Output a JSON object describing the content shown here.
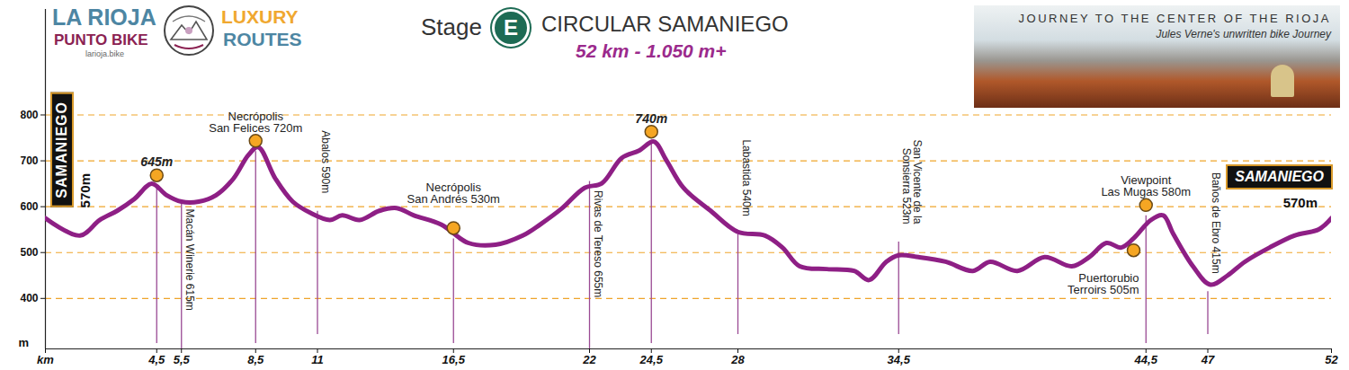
{
  "chart_data": {
    "type": "line",
    "title": "CIRCULAR SAMANIEGO",
    "subtitle": "52 km - 1.050 m+",
    "stage_label": "Stage",
    "stage": "E",
    "branding": {
      "name": "LA RIOJA",
      "subname": "PUNTO BIKE",
      "website": "larioja.bike",
      "tagline": [
        "LUXURY",
        "ROUTES"
      ]
    },
    "banner": {
      "title": "JOURNEY TO THE CENTER OF THE RIOJA",
      "subtitle": "Jules Verne's unwritten bike Journey"
    },
    "x": [
      0,
      1.4,
      2.2,
      2.9,
      3.6,
      4.3,
      4.9,
      5.5,
      6.2,
      6.9,
      7.6,
      8.2,
      8.6,
      9.3,
      10,
      10.7,
      11.5,
      12,
      12.7,
      13.5,
      14.2,
      14.9,
      16,
      17.1,
      18.2,
      19.3,
      20,
      20.9,
      21.8,
      22.5,
      23.3,
      24,
      24.6,
      25.1,
      25.8,
      26.9,
      28,
      29.1,
      29.8,
      30.5,
      31.6,
      32.7,
      33.3,
      34,
      34.5,
      35.3,
      36.4,
      37.5,
      38.2,
      39.3,
      40.4,
      41.5,
      42.2,
      42.9,
      43.5,
      44,
      44.7,
      45.2,
      45.6,
      46.4,
      47.1,
      47.8,
      48.5,
      49.5,
      50.5,
      51.5,
      52
    ],
    "values": [
      575,
      537,
      571,
      591,
      617,
      650,
      625,
      611,
      611,
      625,
      661,
      712,
      730,
      661,
      611,
      587,
      571,
      581,
      571,
      591,
      597,
      581,
      561,
      521,
      517,
      537,
      561,
      597,
      641,
      651,
      706,
      722,
      742,
      702,
      641,
      591,
      545,
      537,
      511,
      470,
      464,
      460,
      440,
      480,
      494,
      490,
      480,
      460,
      480,
      460,
      490,
      470,
      490,
      521,
      511,
      531,
      571,
      581,
      541,
      470,
      430,
      450,
      480,
      511,
      537,
      551,
      575
    ],
    "color": "#8e1f85",
    "xlim": [
      0,
      52
    ],
    "xticks": [
      {
        "value": 0,
        "label": "km"
      },
      {
        "value": 4.5,
        "label": "4,5"
      },
      {
        "value": 5.5,
        "label": "5,5"
      },
      {
        "value": 8.5,
        "label": "8,5"
      },
      11,
      {
        "value": 16.5,
        "label": "16,5"
      },
      22,
      {
        "value": 24.5,
        "label": "24,5"
      },
      28,
      {
        "value": 34.5,
        "label": "34,5"
      },
      {
        "value": 44.5,
        "label": "44,5"
      },
      47,
      52
    ],
    "ylim": [
      290,
      1030
    ],
    "yticks": [
      400,
      500,
      600,
      700,
      800
    ],
    "ylabel": "m",
    "grid": true,
    "markers": [
      {
        "km": 4.5,
        "elevation": 645,
        "label": "645m"
      },
      {
        "km": 8.5,
        "elevation": 720,
        "label": "Necrópolis\nSan Felices 720m"
      },
      {
        "km": 16.5,
        "elevation": 530,
        "label": "Necrópolis\nSan Andrés 530m"
      },
      {
        "km": 24.5,
        "elevation": 740,
        "label": "740m"
      },
      {
        "km": 44,
        "elevation": 505,
        "label": "Puertorubio\nTerroirs 505m"
      },
      {
        "km": 44.5,
        "elevation": 580,
        "label": "Viewpoint\nLas Mugas 580m"
      }
    ],
    "waypoints": [
      {
        "km": 5.5,
        "elevation": 615,
        "label": "Macán Winerie 615m"
      },
      {
        "km": 11,
        "elevation": 590,
        "label": "Abalos 590m"
      },
      {
        "km": 22,
        "elevation": 655,
        "label": "Rivas de Tereso 655m"
      },
      {
        "km": 28,
        "elevation": 540,
        "label": "Labastida 540m"
      },
      {
        "km": 34.5,
        "elevation": 523,
        "label": "San Vicente de la\nSonsierra 523m"
      },
      {
        "km": 47,
        "elevation": 415,
        "label": "Baños de Ebro 415m"
      }
    ],
    "start": {
      "km": 0,
      "elevation": 570,
      "name": "SAMANIEGO",
      "label": "570m"
    },
    "finish": {
      "km": 52,
      "elevation": 570,
      "name": "SAMANIEGO",
      "label": "570m"
    }
  }
}
